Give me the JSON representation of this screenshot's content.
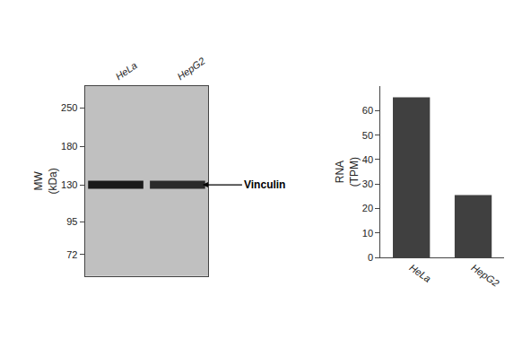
{
  "chart_data": [
    {
      "type": "blot",
      "categories": [
        "HeLa",
        "HepG2"
      ],
      "values": [
        130,
        130
      ],
      "colors": [
        "#1a1a1a",
        "#2a2a2a"
      ],
      "color": "#c0c0c0",
      "ylabel": "MW\n(kDa)",
      "log": "y",
      "ylim": [
        60,
        300
      ],
      "yticks": [
        250,
        180,
        130,
        95,
        72
      ],
      "annotations": [
        {
          "text": "Vinculin",
          "x": "HepG2",
          "y": 130
        }
      ],
      "grid": false
    },
    {
      "type": "bar",
      "categories": [
        "HeLa",
        "HepG2"
      ],
      "values": [
        65.5,
        25.5
      ],
      "color": "#404040",
      "ylabel": "RNA\n(TPM)",
      "ylim": [
        0,
        70
      ],
      "yticks": [
        0,
        10,
        20,
        30,
        40,
        50,
        60
      ],
      "grid": false
    }
  ]
}
